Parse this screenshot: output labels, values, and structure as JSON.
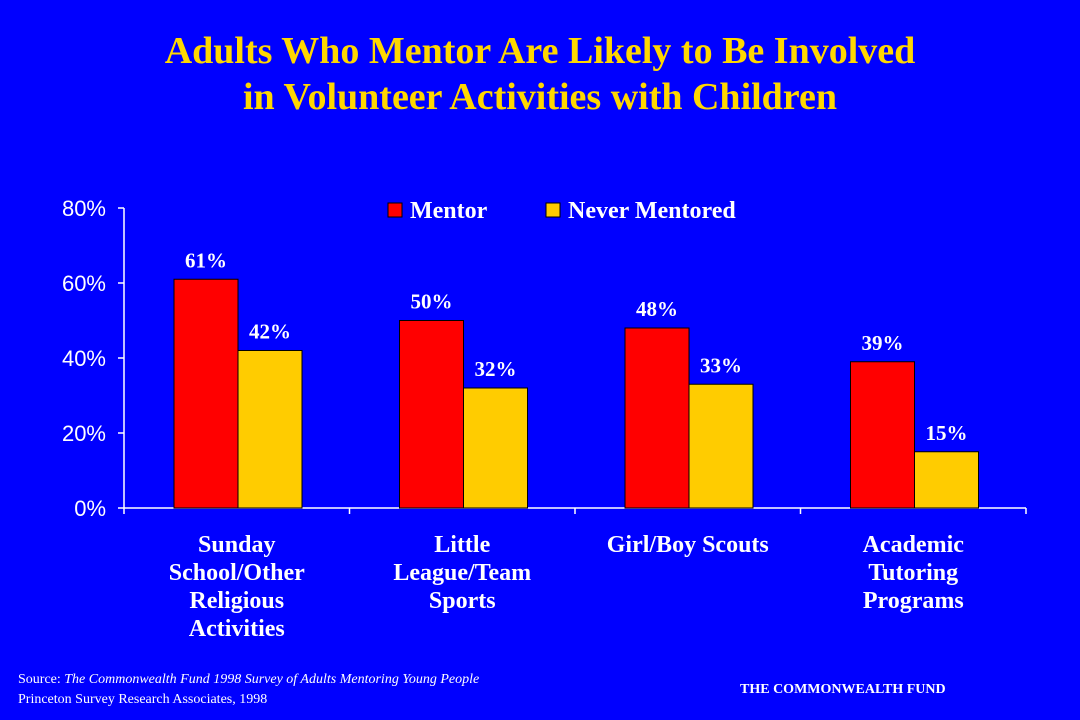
{
  "title_line1": "Adults Who Mentor Are Likely to Be Involved",
  "title_line2": "in Volunteer Activities with Children",
  "colors": {
    "background": "#0000FF",
    "title": "#FFD700",
    "mentor": "#FF0000",
    "never": "#FFCC00"
  },
  "chart_data": {
    "type": "bar",
    "categories": [
      [
        "Sunday",
        "School/Other",
        "Religious",
        "Activities"
      ],
      [
        "Little",
        "League/Team",
        "Sports"
      ],
      [
        "Girl/Boy Scouts"
      ],
      [
        "Academic",
        "Tutoring",
        "Programs"
      ]
    ],
    "series": [
      {
        "name": "Mentor",
        "values": [
          61,
          50,
          48,
          39
        ],
        "labels": [
          "61%",
          "50%",
          "48%",
          "39%"
        ],
        "color": "#FF0000"
      },
      {
        "name": "Never Mentored",
        "values": [
          42,
          32,
          33,
          15
        ],
        "labels": [
          "42%",
          "32%",
          "33%",
          "15%"
        ],
        "color": "#FFCC00"
      }
    ],
    "ylim": [
      0,
      80
    ],
    "yticks": [
      "0%",
      "20%",
      "40%",
      "60%",
      "80%"
    ],
    "legend": "top"
  },
  "source_prefix": "Source: ",
  "source_title": "The Commonwealth Fund 1998 Survey of Adults Mentoring Young People",
  "source_line2": "Princeton Survey Research Associates, 1998",
  "brand": "THE COMMONWEALTH FUND"
}
